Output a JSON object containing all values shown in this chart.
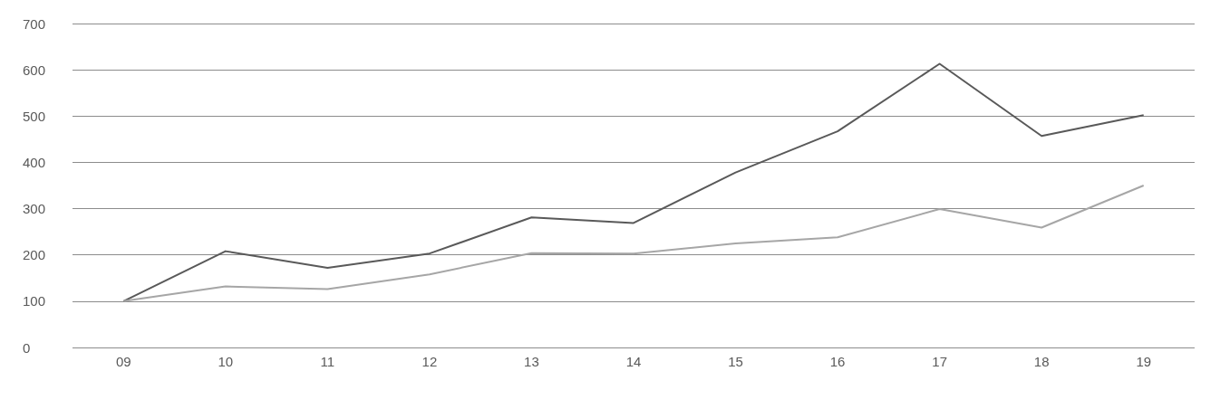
{
  "chart_data": {
    "type": "line",
    "categories": [
      "09",
      "10",
      "11",
      "12",
      "13",
      "14",
      "15",
      "16",
      "17",
      "18",
      "19"
    ],
    "series": [
      {
        "color": "#595959",
        "values": [
          100,
          208,
          172,
          203,
          281,
          269,
          378,
          467,
          613,
          457,
          502
        ]
      },
      {
        "color": "#a6a6a6",
        "values": [
          100,
          132,
          126,
          158,
          204,
          203,
          225,
          238,
          299,
          259,
          350
        ]
      }
    ],
    "ylim": [
      0,
      700
    ],
    "yticks": [
      0,
      100,
      200,
      300,
      400,
      500,
      600,
      700
    ],
    "grid": "y",
    "marker": "none",
    "line_style": "solid"
  }
}
